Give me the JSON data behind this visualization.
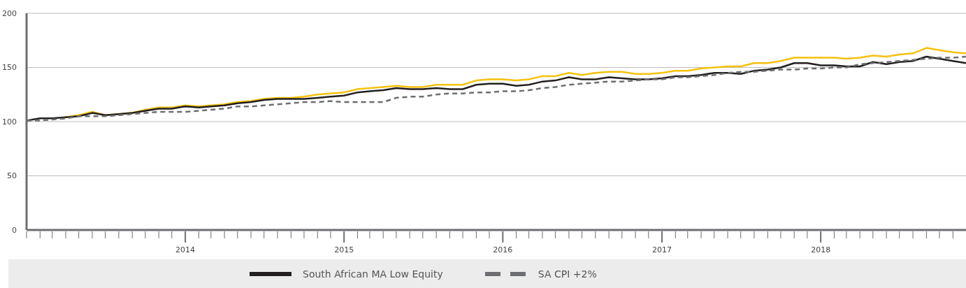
{
  "chart_data": {
    "type": "line",
    "x": [
      "2013-01",
      "2013-02",
      "2013-03",
      "2013-04",
      "2013-05",
      "2013-06",
      "2013-07",
      "2013-08",
      "2013-09",
      "2013-10",
      "2013-11",
      "2013-12",
      "2014-01",
      "2014-02",
      "2014-03",
      "2014-04",
      "2014-05",
      "2014-06",
      "2014-07",
      "2014-08",
      "2014-09",
      "2014-10",
      "2014-11",
      "2014-12",
      "2015-01",
      "2015-02",
      "2015-03",
      "2015-04",
      "2015-05",
      "2015-06",
      "2015-07",
      "2015-08",
      "2015-09",
      "2015-10",
      "2015-11",
      "2015-12",
      "2016-01",
      "2016-02",
      "2016-03",
      "2016-04",
      "2016-05",
      "2016-06",
      "2016-07",
      "2016-08",
      "2016-09",
      "2016-10",
      "2016-11",
      "2016-12",
      "2017-01",
      "2017-02",
      "2017-03",
      "2017-04",
      "2017-05",
      "2017-06",
      "2017-07",
      "2017-08",
      "2017-09",
      "2017-10",
      "2017-11",
      "2017-12",
      "2018-01",
      "2018-02",
      "2018-03",
      "2018-04",
      "2018-05",
      "2018-06",
      "2018-07",
      "2018-08",
      "2018-09",
      "2018-10",
      "2018-11",
      "2018-12"
    ],
    "series": [
      {
        "color": "#f4c20d",
        "line_style": "solid",
        "values": [
          null,
          null,
          null,
          104,
          106,
          109,
          106,
          107,
          108,
          111,
          113,
          113,
          115,
          114,
          115,
          116,
          118,
          119,
          121,
          122,
          122,
          123,
          125,
          126,
          127,
          130,
          131,
          132,
          133,
          132,
          132,
          134,
          134,
          134,
          138,
          139,
          139,
          138,
          139,
          142,
          142,
          145,
          143,
          145,
          146,
          146,
          144,
          144,
          145,
          147,
          147,
          149,
          150,
          151,
          151,
          154,
          154,
          156,
          159,
          159,
          159,
          159,
          158,
          159,
          161,
          160,
          162,
          163,
          168,
          166,
          164,
          163
        ]
      },
      {
        "name": "South African MA Low Equity",
        "color": "#231f20",
        "line_style": "solid",
        "values": [
          101,
          103,
          103,
          104,
          105,
          108,
          106,
          107,
          108,
          110,
          112,
          112,
          114,
          113,
          114,
          115,
          117,
          118,
          120,
          121,
          121,
          121,
          122,
          123,
          124,
          127,
          128,
          129,
          131,
          130,
          130,
          131,
          130,
          130,
          134,
          135,
          135,
          133,
          134,
          137,
          138,
          141,
          139,
          139,
          141,
          140,
          139,
          139,
          140,
          142,
          142,
          143,
          145,
          145,
          144,
          147,
          148,
          150,
          154,
          154,
          152,
          152,
          151,
          151,
          155,
          153,
          155,
          156,
          160,
          158,
          156,
          154
        ]
      },
      {
        "name": "SA CPI +2%",
        "color": "#6d6e71",
        "line_style": "dashed",
        "values": [
          101,
          101,
          102,
          103,
          105,
          105,
          105,
          106,
          107,
          108,
          109,
          109,
          109,
          110,
          111,
          112,
          114,
          114,
          115,
          116,
          117,
          118,
          118,
          119,
          118,
          118,
          118,
          118,
          122,
          123,
          123,
          125,
          126,
          126,
          127,
          127,
          128,
          128,
          129,
          131,
          132,
          134,
          135,
          136,
          137,
          137,
          138,
          139,
          139,
          141,
          141,
          142,
          143,
          145,
          146,
          146,
          147,
          148,
          148,
          149,
          149,
          150,
          150,
          153,
          154,
          155,
          156,
          157,
          158,
          159,
          159,
          160
        ]
      }
    ],
    "ylim": [
      0,
      200
    ],
    "yticks": [
      0,
      50,
      100,
      150,
      200
    ],
    "xlim": [
      "2013-01",
      "2018-12"
    ],
    "xticks": [
      {
        "value": "2013-01",
        "label": null
      },
      {
        "value": "2013-02",
        "label": null
      },
      {
        "value": "2013-03",
        "label": null
      },
      {
        "value": "2013-04",
        "label": null
      },
      {
        "value": "2013-05",
        "label": null
      },
      {
        "value": "2013-06",
        "label": null
      },
      {
        "value": "2013-07",
        "label": null
      },
      {
        "value": "2013-08",
        "label": null
      },
      {
        "value": "2013-09",
        "label": null
      },
      {
        "value": "2013-10",
        "label": null
      },
      {
        "value": "2013-11",
        "label": null
      },
      {
        "value": "2013-12",
        "label": null
      },
      {
        "value": "2014-01",
        "label": "2014"
      },
      {
        "value": "2014-02",
        "label": null
      },
      {
        "value": "2014-03",
        "label": null
      },
      {
        "value": "2014-04",
        "label": null
      },
      {
        "value": "2014-05",
        "label": null
      },
      {
        "value": "2014-06",
        "label": null
      },
      {
        "value": "2014-07",
        "label": null
      },
      {
        "value": "2014-08",
        "label": null
      },
      {
        "value": "2014-09",
        "label": null
      },
      {
        "value": "2014-10",
        "label": null
      },
      {
        "value": "2014-11",
        "label": null
      },
      {
        "value": "2014-12",
        "label": null
      },
      {
        "value": "2015-01",
        "label": "2015"
      },
      {
        "value": "2015-02",
        "label": null
      },
      {
        "value": "2015-03",
        "label": null
      },
      {
        "value": "2015-04",
        "label": null
      },
      {
        "value": "2015-05",
        "label": null
      },
      {
        "value": "2015-06",
        "label": null
      },
      {
        "value": "2015-07",
        "label": null
      },
      {
        "value": "2015-08",
        "label": null
      },
      {
        "value": "2015-09",
        "label": null
      },
      {
        "value": "2015-10",
        "label": null
      },
      {
        "value": "2015-11",
        "label": null
      },
      {
        "value": "2015-12",
        "label": null
      },
      {
        "value": "2016-01",
        "label": "2016"
      },
      {
        "value": "2016-02",
        "label": null
      },
      {
        "value": "2016-03",
        "label": null
      },
      {
        "value": "2016-04",
        "label": null
      },
      {
        "value": "2016-05",
        "label": null
      },
      {
        "value": "2016-06",
        "label": null
      },
      {
        "value": "2016-07",
        "label": null
      },
      {
        "value": "2016-08",
        "label": null
      },
      {
        "value": "2016-09",
        "label": null
      },
      {
        "value": "2016-10",
        "label": null
      },
      {
        "value": "2016-11",
        "label": null
      },
      {
        "value": "2016-12",
        "label": null
      },
      {
        "value": "2017-01",
        "label": "2017"
      },
      {
        "value": "2017-02",
        "label": null
      },
      {
        "value": "2017-03",
        "label": null
      },
      {
        "value": "2017-04",
        "label": null
      },
      {
        "value": "2017-05",
        "label": null
      },
      {
        "value": "2017-06",
        "label": null
      },
      {
        "value": "2017-07",
        "label": null
      },
      {
        "value": "2017-08",
        "label": null
      },
      {
        "value": "2017-09",
        "label": null
      },
      {
        "value": "2017-10",
        "label": null
      },
      {
        "value": "2017-11",
        "label": null
      },
      {
        "value": "2017-12",
        "label": null
      },
      {
        "value": "2018-01",
        "label": "2018"
      },
      {
        "value": "2018-02",
        "label": null
      },
      {
        "value": "2018-03",
        "label": null
      },
      {
        "value": "2018-04",
        "label": null
      },
      {
        "value": "2018-05",
        "label": null
      },
      {
        "value": "2018-06",
        "label": null
      },
      {
        "value": "2018-07",
        "label": null
      },
      {
        "value": "2018-08",
        "label": null
      },
      {
        "value": "2018-09",
        "label": null
      },
      {
        "value": "2018-10",
        "label": null
      },
      {
        "value": "2018-11",
        "label": null
      }
    ],
    "grid": "y",
    "legend": "bottom"
  }
}
